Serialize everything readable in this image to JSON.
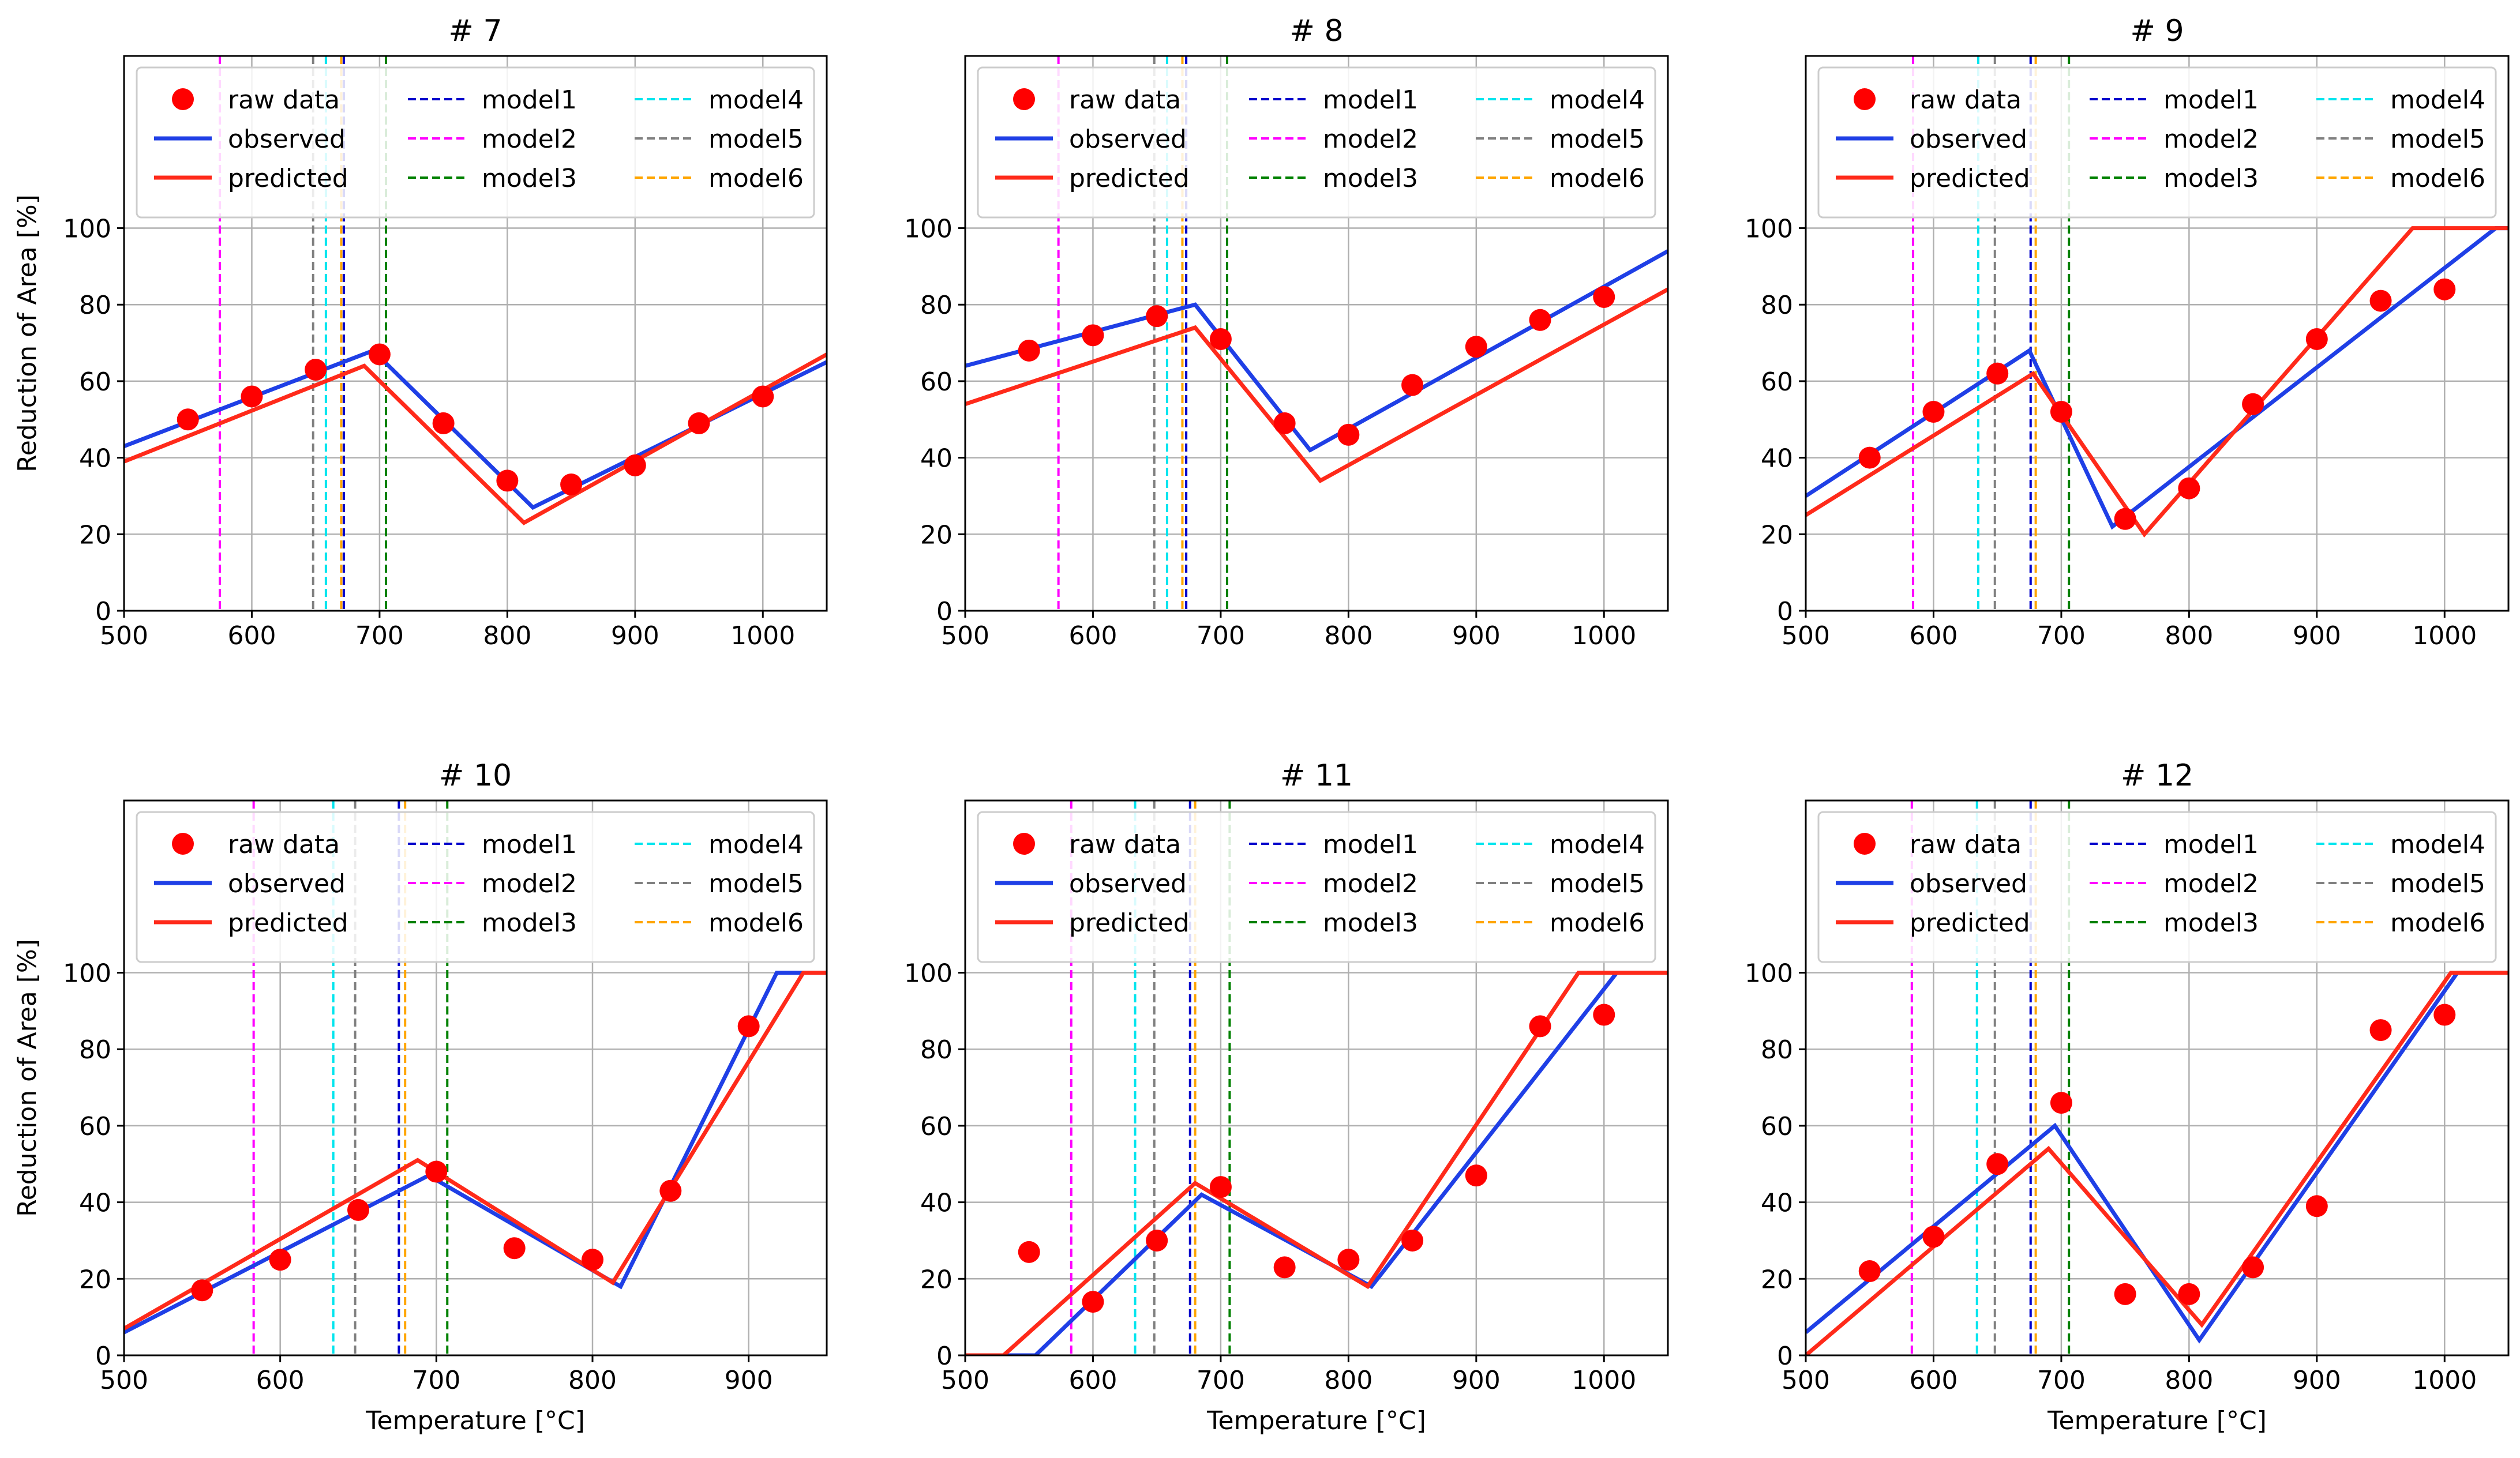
{
  "figure": {
    "ylabel": "Reduction of Area [%]",
    "xlabel": "Temperature [°C]"
  },
  "legend": {
    "entries": [
      {
        "key": "raw",
        "label": "raw data",
        "kind": "marker",
        "color": "#ff0000"
      },
      {
        "key": "observed",
        "label": "observed",
        "kind": "solid",
        "color": "#1f3fe6"
      },
      {
        "key": "predicted",
        "label": "predicted",
        "kind": "solid",
        "color": "#ff2a1a"
      },
      {
        "key": "model1",
        "label": "model1",
        "kind": "dashed",
        "color": "#0000cc"
      },
      {
        "key": "model2",
        "label": "model2",
        "kind": "dashed",
        "color": "#ff00ff"
      },
      {
        "key": "model3",
        "label": "model3",
        "kind": "dashed",
        "color": "#008000"
      },
      {
        "key": "model4",
        "label": "model4",
        "kind": "dashed",
        "color": "#00e5ee"
      },
      {
        "key": "model5",
        "label": "model5",
        "kind": "dashed",
        "color": "#808080"
      },
      {
        "key": "model6",
        "label": "model6",
        "kind": "dashed",
        "color": "#ffa500"
      }
    ]
  },
  "chart_data": [
    {
      "type": "line",
      "title": "# 7",
      "xlim": [
        500,
        1050
      ],
      "ylim": [
        0,
        145
      ],
      "xticks": [
        500,
        600,
        700,
        800,
        900,
        1000
      ],
      "yticks": [
        0,
        20,
        40,
        60,
        80,
        100
      ],
      "xlabel": "",
      "ylabel": "Reduction of Area [%]",
      "grid": true,
      "raw": {
        "x": [
          550,
          600,
          650,
          700,
          750,
          800,
          850,
          900,
          950,
          1000
        ],
        "y": [
          50,
          56,
          63,
          67,
          49,
          34,
          33,
          38,
          49,
          56
        ]
      },
      "observed": {
        "x": [
          500,
          695,
          820,
          1050
        ],
        "y": [
          43,
          68,
          27,
          65
        ]
      },
      "predicted": {
        "x": [
          500,
          688,
          813,
          1050
        ],
        "y": [
          39,
          64,
          23,
          67
        ]
      },
      "models": {
        "model1": 672,
        "model2": 575,
        "model3": 705,
        "model4": 658,
        "model5": 648,
        "model6": 670
      }
    },
    {
      "type": "line",
      "title": "# 8",
      "xlim": [
        500,
        1050
      ],
      "ylim": [
        0,
        145
      ],
      "xticks": [
        500,
        600,
        700,
        800,
        900,
        1000
      ],
      "yticks": [
        0,
        20,
        40,
        60,
        80,
        100
      ],
      "xlabel": "",
      "ylabel": "",
      "grid": true,
      "raw": {
        "x": [
          550,
          600,
          650,
          700,
          750,
          800,
          850,
          900,
          950,
          1000
        ],
        "y": [
          68,
          72,
          77,
          71,
          49,
          46,
          59,
          69,
          76,
          82
        ]
      },
      "observed": {
        "x": [
          500,
          680,
          770,
          1050
        ],
        "y": [
          64,
          80,
          42,
          94
        ]
      },
      "predicted": {
        "x": [
          500,
          680,
          778,
          1050
        ],
        "y": [
          54,
          74,
          34,
          84
        ]
      },
      "models": {
        "model1": 673,
        "model2": 573,
        "model3": 705,
        "model4": 658,
        "model5": 648,
        "model6": 670
      }
    },
    {
      "type": "line",
      "title": "# 9",
      "xlim": [
        500,
        1050
      ],
      "ylim": [
        0,
        145
      ],
      "xticks": [
        500,
        600,
        700,
        800,
        900,
        1000
      ],
      "yticks": [
        0,
        20,
        40,
        60,
        80,
        100
      ],
      "xlabel": "",
      "ylabel": "",
      "grid": true,
      "raw": {
        "x": [
          550,
          600,
          650,
          700,
          750,
          800,
          850,
          900,
          950,
          1000
        ],
        "y": [
          40,
          52,
          62,
          52,
          24,
          32,
          54,
          71,
          81,
          84
        ]
      },
      "observed": {
        "x": [
          500,
          675,
          740,
          1040,
          1050
        ],
        "y": [
          30,
          68,
          22,
          100,
          100
        ]
      },
      "predicted": {
        "x": [
          500,
          678,
          765,
          975,
          1050
        ],
        "y": [
          25,
          62,
          20,
          100,
          100
        ]
      },
      "models": {
        "model1": 676,
        "model2": 584,
        "model3": 706,
        "model4": 635,
        "model5": 648,
        "model6": 680
      }
    },
    {
      "type": "line",
      "title": "# 10",
      "xlim": [
        500,
        950
      ],
      "ylim": [
        0,
        145
      ],
      "xticks": [
        500,
        600,
        700,
        800,
        900
      ],
      "yticks": [
        0,
        20,
        40,
        60,
        80,
        100
      ],
      "xlabel": "Temperature [°C]",
      "ylabel": "Reduction of Area [%]",
      "grid": true,
      "raw": {
        "x": [
          550,
          600,
          650,
          700,
          750,
          800,
          850,
          900
        ],
        "y": [
          17,
          25,
          38,
          48,
          28,
          25,
          43,
          86
        ]
      },
      "observed": {
        "x": [
          500,
          695,
          818,
          918,
          950
        ],
        "y": [
          6,
          47,
          18,
          100,
          100
        ]
      },
      "predicted": {
        "x": [
          500,
          688,
          813,
          935,
          950
        ],
        "y": [
          7,
          51,
          19,
          100,
          100
        ]
      },
      "models": {
        "model1": 676,
        "model2": 583,
        "model3": 707,
        "model4": 634,
        "model5": 648,
        "model6": 680
      }
    },
    {
      "type": "line",
      "title": "# 11",
      "xlim": [
        500,
        1050
      ],
      "ylim": [
        0,
        145
      ],
      "xticks": [
        500,
        600,
        700,
        800,
        900,
        1000
      ],
      "yticks": [
        0,
        20,
        40,
        60,
        80,
        100
      ],
      "xlabel": "Temperature [°C]",
      "ylabel": "",
      "grid": true,
      "raw": {
        "x": [
          550,
          600,
          650,
          700,
          750,
          800,
          850,
          900,
          950,
          1000
        ],
        "y": [
          27,
          14,
          30,
          44,
          23,
          25,
          30,
          47,
          86,
          89
        ]
      },
      "observed": {
        "x": [
          500,
          555,
          685,
          818,
          1010,
          1050
        ],
        "y": [
          0,
          0,
          42,
          18,
          100,
          100
        ]
      },
      "predicted": {
        "x": [
          500,
          530,
          680,
          815,
          980,
          1050
        ],
        "y": [
          0,
          0,
          45,
          18,
          100,
          100
        ]
      },
      "models": {
        "model1": 676,
        "model2": 583,
        "model3": 707,
        "model4": 633,
        "model5": 648,
        "model6": 680
      }
    },
    {
      "type": "line",
      "title": "# 12",
      "xlim": [
        500,
        1050
      ],
      "ylim": [
        0,
        145
      ],
      "xticks": [
        500,
        600,
        700,
        800,
        900,
        1000
      ],
      "yticks": [
        0,
        20,
        40,
        60,
        80,
        100
      ],
      "xlabel": "Temperature [°C]",
      "ylabel": "",
      "grid": true,
      "raw": {
        "x": [
          550,
          600,
          650,
          700,
          750,
          800,
          850,
          900,
          950,
          1000
        ],
        "y": [
          22,
          31,
          50,
          66,
          16,
          16,
          23,
          39,
          85,
          89
        ]
      },
      "observed": {
        "x": [
          500,
          695,
          808,
          1010,
          1050
        ],
        "y": [
          6,
          60,
          4,
          100,
          100
        ]
      },
      "predicted": {
        "x": [
          500,
          690,
          810,
          1005,
          1050
        ],
        "y": [
          0,
          54,
          8,
          100,
          100
        ]
      },
      "models": {
        "model1": 676,
        "model2": 583,
        "model3": 706,
        "model4": 634,
        "model5": 648,
        "model6": 680
      }
    }
  ]
}
